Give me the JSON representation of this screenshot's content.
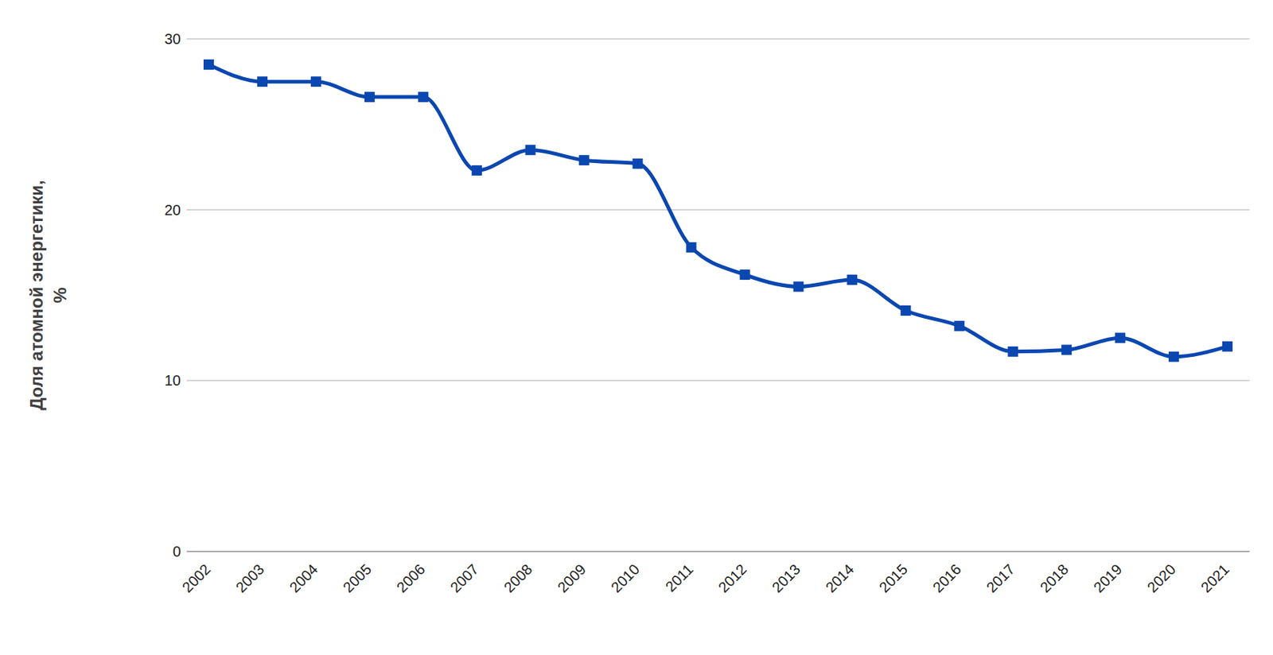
{
  "chart_data": {
    "type": "line",
    "y_label": "Доля атомной энергетики, %",
    "categories": [
      "2002",
      "2003",
      "2004",
      "2005",
      "2006",
      "2007",
      "2008",
      "2009",
      "2010",
      "2011",
      "2012",
      "2013",
      "2014",
      "2015",
      "2016",
      "2017",
      "2018",
      "2019",
      "2020",
      "2021"
    ],
    "values": [
      28.5,
      27.5,
      27.5,
      26.6,
      26.6,
      22.3,
      23.5,
      22.9,
      22.7,
      17.8,
      16.2,
      15.5,
      15.9,
      14.1,
      13.2,
      11.7,
      11.8,
      12.5,
      11.4,
      12.0
    ],
    "color": "#0a47b0",
    "marker": "square",
    "ylim": [
      0,
      30
    ],
    "yticks": [
      0,
      10,
      20,
      30
    ],
    "grid": true
  }
}
